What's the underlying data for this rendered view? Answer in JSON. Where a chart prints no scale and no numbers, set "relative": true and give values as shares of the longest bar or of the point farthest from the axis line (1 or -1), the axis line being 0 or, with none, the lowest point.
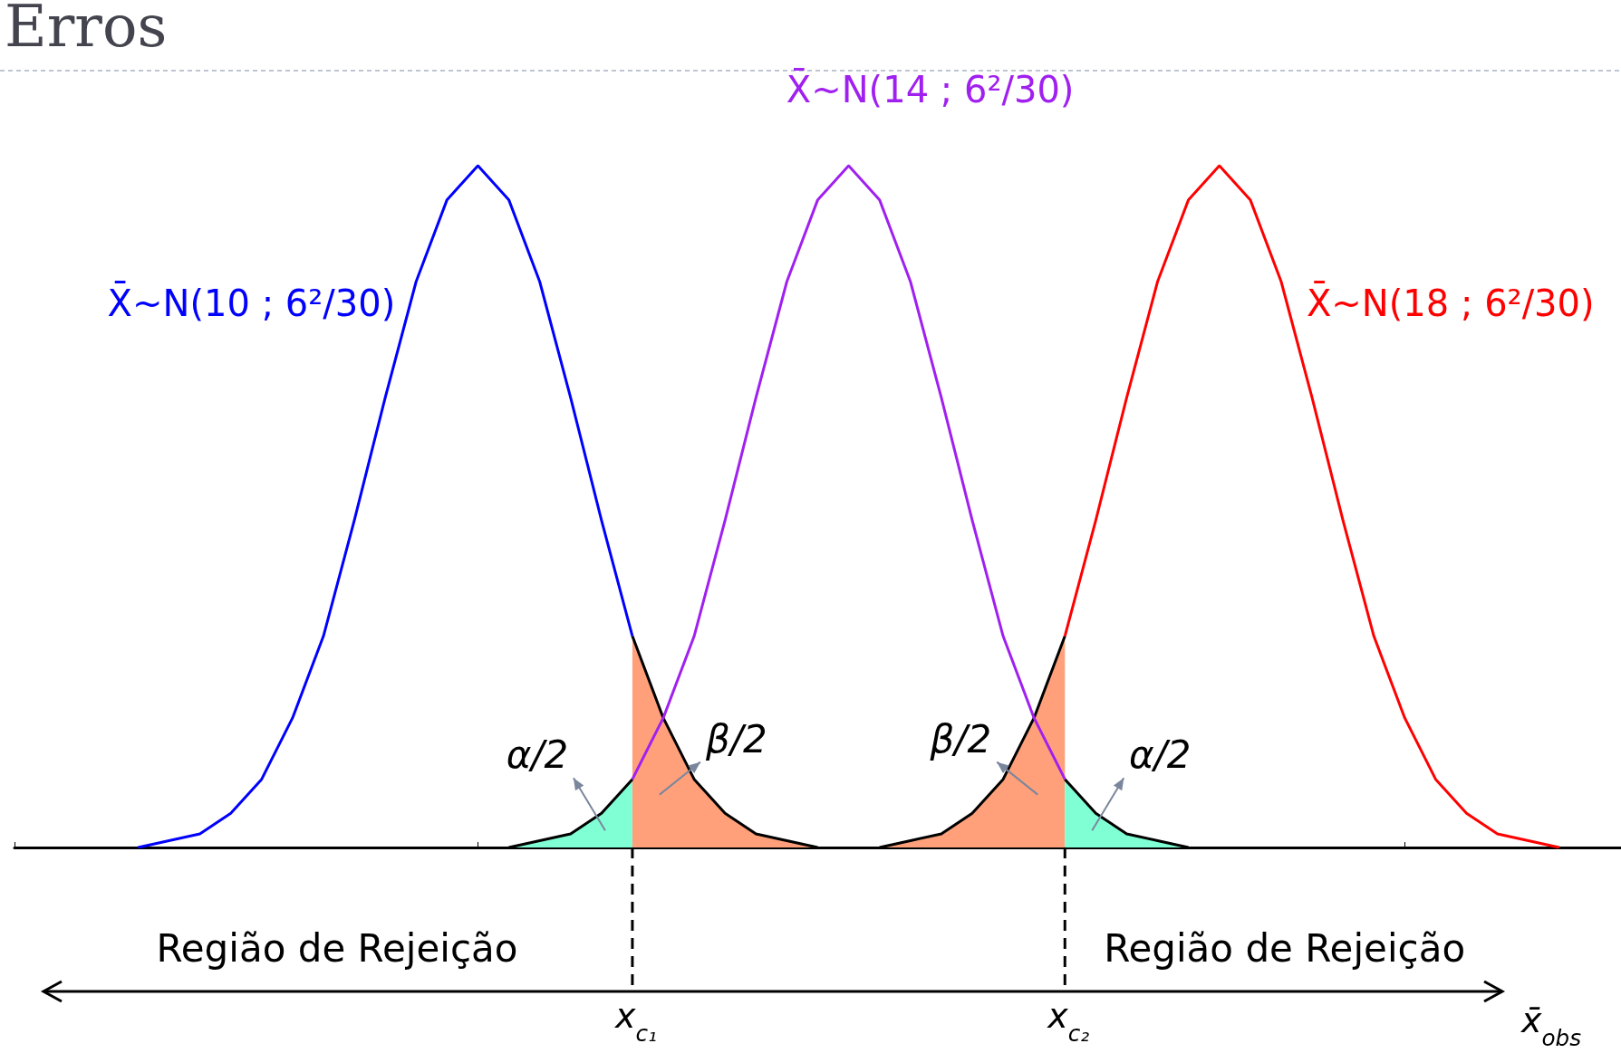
{
  "chart_data": {
    "type": "line",
    "title": "Erros",
    "relative": true,
    "tick_labels": false,
    "marker": "none",
    "xlabel": "x̄$_{obs}$",
    "annotations": [
      "x$_{c₁}$",
      "x$_{c₂}$",
      "Região de Rejeição",
      "Região de Rejeição"
    ],
    "categories": [
      null,
      null,
      null,
      null,
      null,
      null,
      null,
      null,
      null,
      null,
      null,
      null,
      null,
      null,
      null,
      null,
      null,
      null,
      null,
      null,
      null,
      null,
      null,
      null,
      null,
      null,
      null,
      null,
      null,
      null,
      null,
      null,
      null,
      null,
      null,
      null,
      null,
      null,
      null,
      null,
      null,
      null,
      null,
      null,
      null,
      null,
      null,
      null,
      null,
      null,
      null,
      null,
      null
    ],
    "series": [
      {
        "name": "α/2",
        "type": "area",
        "color": "#80ffd4",
        "values": [
          null,
          null,
          null,
          null,
          null,
          null,
          null,
          null,
          null,
          null,
          null,
          null,
          null,
          null,
          null,
          null,
          0,
          0.01,
          0.02,
          0.05,
          0.1,
          null,
          null,
          null,
          null,
          null,
          null,
          null,
          null,
          null,
          null,
          null,
          null,
          null,
          null,
          null,
          null,
          null,
          null,
          null,
          null,
          null,
          null,
          null,
          null,
          null,
          null,
          null,
          null,
          null,
          null,
          null,
          null
        ]
      },
      {
        "name": "β/2",
        "type": "area",
        "color": "#ffa07a",
        "values": [
          null,
          null,
          null,
          null,
          null,
          null,
          null,
          null,
          null,
          null,
          null,
          null,
          null,
          null,
          null,
          null,
          null,
          null,
          null,
          null,
          0.31,
          0.19,
          0.1,
          0.05,
          0.02,
          0.01,
          0,
          null,
          null,
          null,
          null,
          null,
          null,
          null,
          null,
          null,
          null,
          null,
          null,
          null,
          null,
          null,
          null,
          null,
          null,
          null,
          null,
          null,
          null,
          null,
          null,
          null,
          null
        ]
      },
      {
        "name": "β/2",
        "type": "area",
        "color": "#ffa07a",
        "values": [
          null,
          null,
          null,
          null,
          null,
          null,
          null,
          null,
          null,
          null,
          null,
          null,
          null,
          null,
          null,
          null,
          null,
          null,
          null,
          null,
          null,
          null,
          null,
          null,
          null,
          null,
          null,
          null,
          0,
          0.01,
          0.02,
          0.05,
          0.1,
          0.19,
          0.31,
          null,
          null,
          null,
          null,
          null,
          null,
          null,
          null,
          null,
          null,
          null,
          null,
          null,
          null,
          null,
          null,
          null,
          null
        ]
      },
      {
        "name": "α/2",
        "type": "area",
        "color": "#80ffd4",
        "values": [
          null,
          null,
          null,
          null,
          null,
          null,
          null,
          null,
          null,
          null,
          null,
          null,
          null,
          null,
          null,
          null,
          null,
          null,
          null,
          null,
          null,
          null,
          null,
          null,
          null,
          null,
          null,
          null,
          null,
          null,
          null,
          null,
          null,
          null,
          0.1,
          0.05,
          0.02,
          0.01,
          0,
          null,
          null,
          null,
          null,
          null,
          null,
          null,
          null,
          null,
          null,
          null,
          null,
          null,
          null
        ]
      },
      {
        "name": "X̄~N(10 ; 6²/30)",
        "color": "#0000ff",
        "values": [
          null,
          null,
          null,
          null,
          0,
          0.01,
          0.02,
          0.05,
          0.1,
          0.19,
          0.31,
          0.48,
          0.66,
          0.83,
          0.95,
          1,
          0.95,
          0.83,
          0.66,
          0.48,
          0.31,
          null,
          null,
          null,
          null,
          null,
          null,
          null,
          null,
          null,
          null,
          null,
          null,
          null,
          null,
          null,
          null,
          null,
          null,
          null,
          null,
          null,
          null,
          null,
          null,
          null,
          null,
          null,
          null,
          null,
          null,
          null,
          null
        ]
      },
      {
        "name": "X̄~N(14 ; 6²/30)",
        "color": "#a020f0",
        "values": [
          null,
          null,
          null,
          null,
          null,
          null,
          null,
          null,
          null,
          null,
          null,
          null,
          null,
          null,
          null,
          null,
          null,
          null,
          null,
          null,
          0.1,
          0.19,
          0.31,
          0.48,
          0.66,
          0.83,
          0.95,
          1,
          0.95,
          0.83,
          0.66,
          0.48,
          0.31,
          0.19,
          0.1,
          null,
          null,
          null,
          null,
          null,
          null,
          null,
          null,
          null,
          null,
          null,
          null,
          null,
          null,
          null,
          null,
          null,
          null
        ]
      },
      {
        "name": "X̄~N(18 ; 6²/30)",
        "color": "#ff0000",
        "values": [
          null,
          null,
          null,
          null,
          null,
          null,
          null,
          null,
          null,
          null,
          null,
          null,
          null,
          null,
          null,
          null,
          null,
          null,
          null,
          null,
          null,
          null,
          null,
          null,
          null,
          null,
          null,
          null,
          null,
          null,
          null,
          null,
          null,
          null,
          0.31,
          0.48,
          0.66,
          0.83,
          0.95,
          1,
          0.95,
          0.83,
          0.66,
          0.48,
          0.31,
          0.19,
          0.1,
          0.05,
          0.02,
          0.01,
          0,
          null,
          null
        ]
      }
    ]
  }
}
